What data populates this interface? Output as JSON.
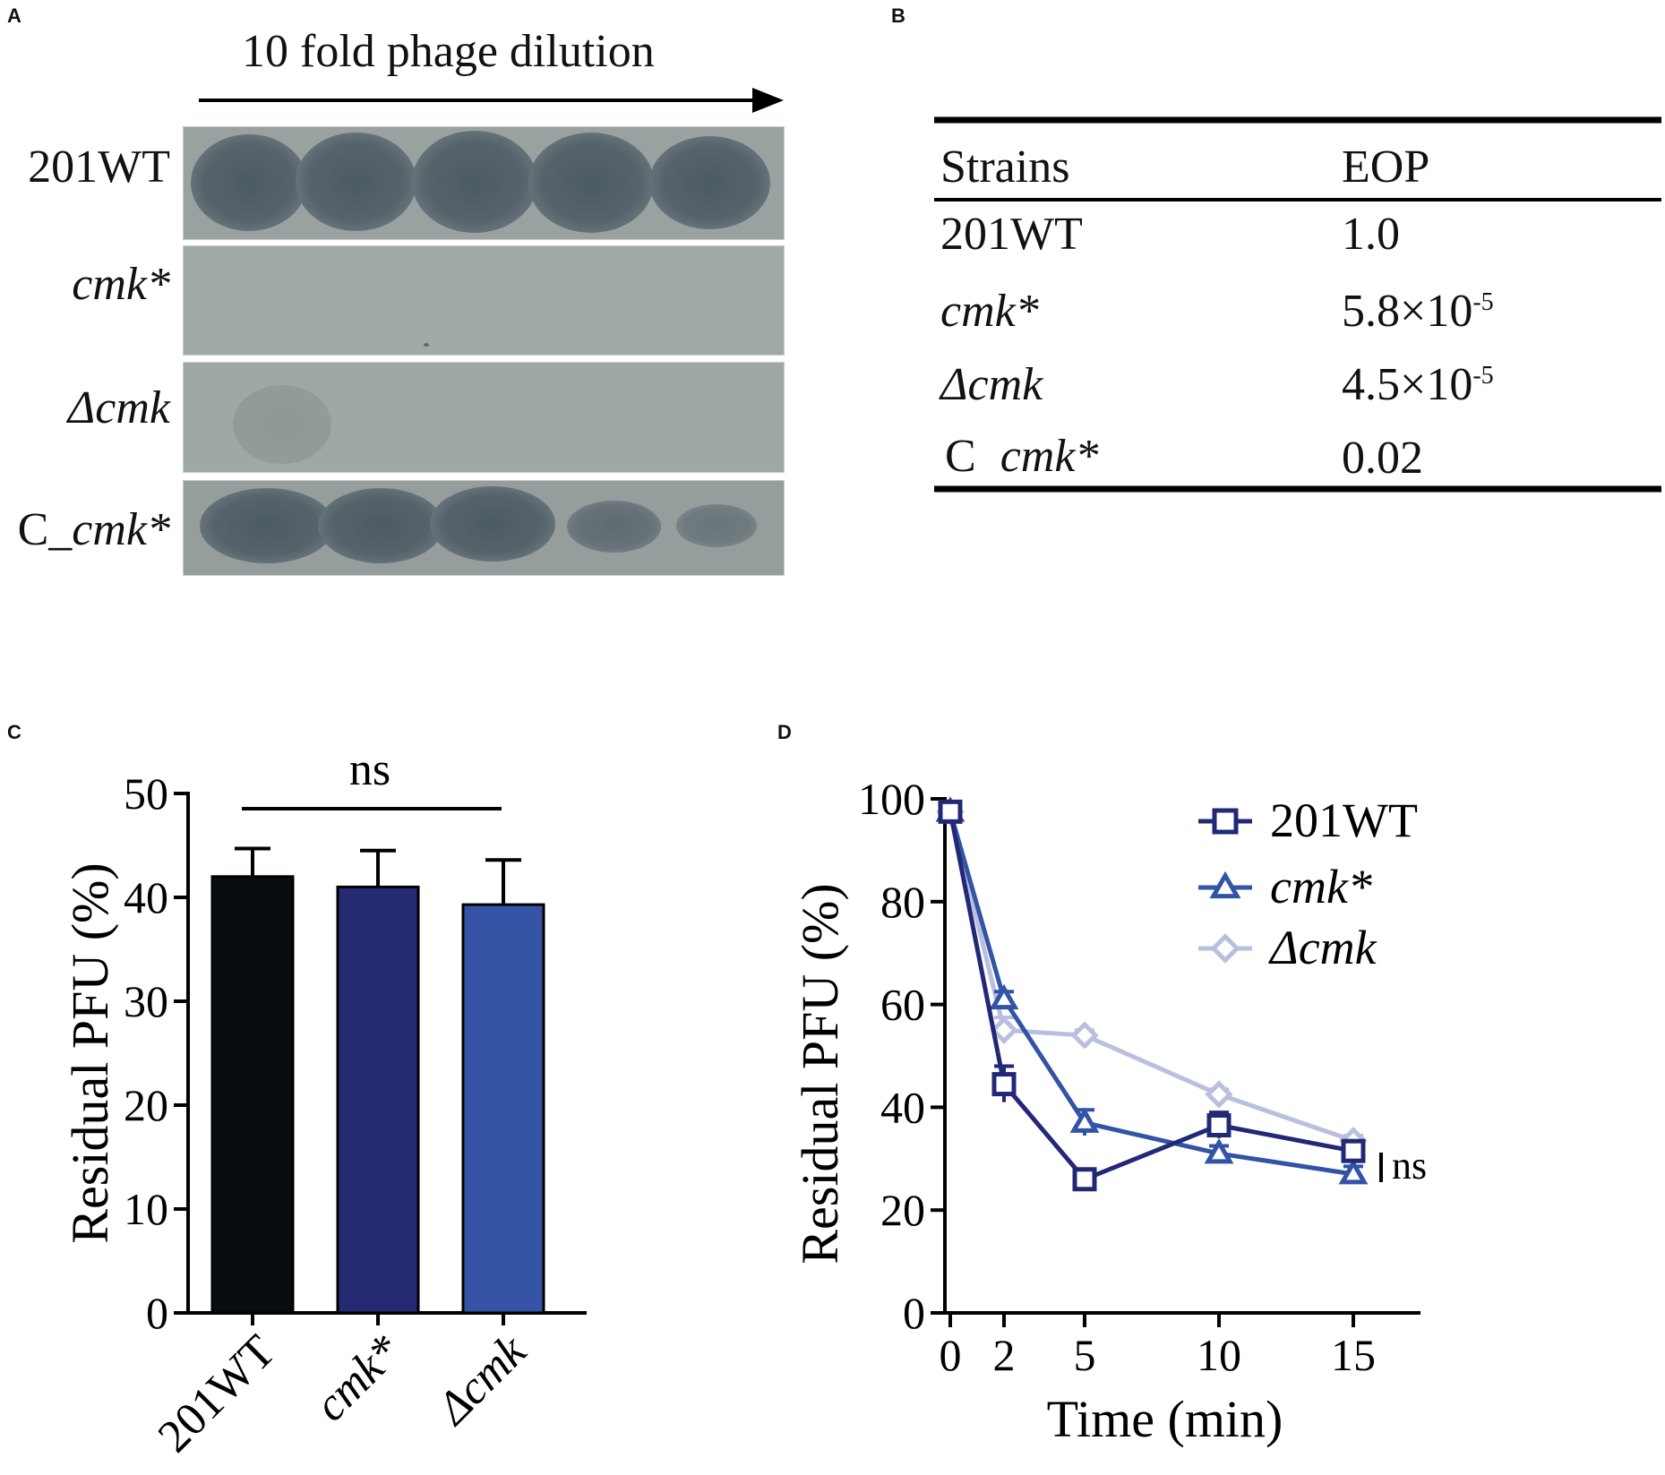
{
  "panel_a": {
    "letter": "A",
    "dilution_label": "10 fold phage dilution",
    "rows": [
      {
        "label": "201WT",
        "italic": false
      },
      {
        "label": "cmk*",
        "italic": true
      },
      {
        "label": "Δcmk",
        "italic": true
      },
      {
        "label_prefix": "C_",
        "label_italic": "cmk*"
      }
    ]
  },
  "panel_b": {
    "letter": "B",
    "headers": [
      "Strains",
      "EOP"
    ],
    "rows": [
      {
        "strain": "201WT",
        "strain_italic": false,
        "eop": "1.0",
        "eop_exp": ""
      },
      {
        "strain": "cmk*",
        "strain_italic": true,
        "eop": "5.8×10",
        "eop_exp": "-5"
      },
      {
        "strain": "Δcmk",
        "strain_italic": true,
        "eop": "4.5×10",
        "eop_exp": "-5"
      },
      {
        "strain_prefix": "C ",
        "strain": "cmk*",
        "strain_italic": true,
        "eop": "0.02",
        "eop_exp": ""
      }
    ]
  },
  "chart_data": [
    {
      "panel": "C",
      "type": "bar",
      "categories": [
        "201WT",
        "cmk*",
        "Δcmk"
      ],
      "category_italic": [
        false,
        true,
        true
      ],
      "values": [
        42,
        41,
        39.3
      ],
      "errors": [
        2.7,
        3.5,
        4.3
      ],
      "colors": [
        "#0a0d0f",
        "#262a72",
        "#3654a5"
      ],
      "ylabel": "Residual PFU (%)",
      "ylim": [
        0,
        50
      ],
      "yticks": [
        0,
        10,
        20,
        30,
        40,
        50
      ],
      "significance": "ns"
    },
    {
      "panel": "D",
      "type": "line",
      "x": [
        0,
        2,
        5,
        10,
        15
      ],
      "xticks": [
        0,
        2,
        5,
        10,
        15
      ],
      "xlabel": "Time (min)",
      "ylabel": "Residual PFU (%)",
      "xlim": [
        0,
        17.5
      ],
      "ylim": [
        0,
        100
      ],
      "yticks": [
        0,
        20,
        40,
        60,
        80,
        100
      ],
      "significance": "ns",
      "legend_position": "top-right",
      "series": [
        {
          "name": "201WT",
          "italic": false,
          "marker": "square",
          "color": "#232876",
          "values": [
            97.5,
            44.5,
            26,
            36.5,
            31.5
          ],
          "errors": [
            1,
            3.5,
            1.5,
            2.5,
            1.5
          ]
        },
        {
          "name": "cmk*",
          "italic": true,
          "marker": "triangle",
          "color": "#3353a6",
          "values": [
            97.5,
            61,
            37,
            31,
            27
          ],
          "errors": [
            1,
            1.5,
            2.5,
            1.5,
            1.5
          ]
        },
        {
          "name": "Δcmk",
          "italic": true,
          "marker": "diamond",
          "color": "#b9bfde",
          "values": [
            97.5,
            55,
            54,
            42.5,
            33.5
          ],
          "errors": [
            1,
            2.5,
            1,
            1,
            1
          ]
        }
      ]
    }
  ]
}
